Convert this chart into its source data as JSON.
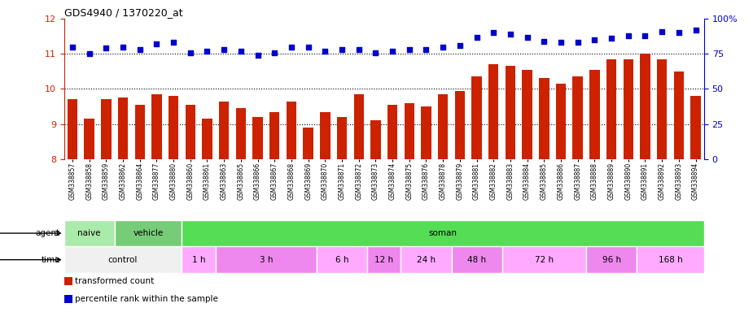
{
  "title": "GDS4940 / 1370220_at",
  "samples": [
    "GSM338857",
    "GSM338858",
    "GSM338859",
    "GSM338862",
    "GSM338864",
    "GSM338877",
    "GSM338880",
    "GSM338860",
    "GSM338861",
    "GSM338863",
    "GSM338865",
    "GSM338866",
    "GSM338867",
    "GSM338868",
    "GSM338869",
    "GSM338870",
    "GSM338871",
    "GSM338872",
    "GSM338873",
    "GSM338874",
    "GSM338875",
    "GSM338876",
    "GSM338878",
    "GSM338879",
    "GSM338881",
    "GSM338882",
    "GSM338883",
    "GSM338884",
    "GSM338885",
    "GSM338886",
    "GSM338887",
    "GSM338888",
    "GSM338889",
    "GSM338890",
    "GSM338891",
    "GSM338892",
    "GSM338893",
    "GSM338894"
  ],
  "bar_values": [
    9.7,
    9.15,
    9.7,
    9.75,
    9.55,
    9.85,
    9.8,
    9.55,
    9.15,
    9.65,
    9.45,
    9.2,
    9.35,
    9.65,
    8.9,
    9.35,
    9.2,
    9.85,
    9.1,
    9.55,
    9.6,
    9.5,
    9.85,
    9.95,
    10.35,
    10.7,
    10.65,
    10.55,
    10.3,
    10.15,
    10.35,
    10.55,
    10.85,
    10.85,
    11.0,
    10.85,
    10.5,
    9.8
  ],
  "percentile_right": [
    80,
    75,
    79,
    80,
    78,
    82,
    83,
    76,
    77,
    78,
    77,
    74,
    76,
    80,
    80,
    77,
    78,
    78,
    76,
    77,
    78,
    78,
    80,
    81,
    87,
    90,
    89,
    87,
    84,
    83,
    83,
    85,
    86,
    88,
    88,
    91,
    90,
    92
  ],
  "bar_color": "#cc2200",
  "dot_color": "#0000cc",
  "ylim_left": [
    8,
    12
  ],
  "ylim_right": [
    0,
    100
  ],
  "yticks_left": [
    8,
    9,
    10,
    11,
    12
  ],
  "yticks_right": [
    0,
    25,
    50,
    75,
    100
  ],
  "ytick_right_labels": [
    "0",
    "25",
    "50",
    "75",
    "100%"
  ],
  "grid_lines": [
    9,
    10,
    11
  ],
  "agent_groups": [
    {
      "label": "naive",
      "start": 0,
      "end": 3,
      "color": "#aaeaaa"
    },
    {
      "label": "vehicle",
      "start": 3,
      "end": 7,
      "color": "#77cc77"
    },
    {
      "label": "soman",
      "start": 7,
      "end": 38,
      "color": "#55dd55"
    }
  ],
  "time_groups": [
    {
      "label": "control",
      "start": 0,
      "end": 7,
      "color": "#f0f0f0"
    },
    {
      "label": "1 h",
      "start": 7,
      "end": 9,
      "color": "#ffaaff"
    },
    {
      "label": "3 h",
      "start": 9,
      "end": 15,
      "color": "#ee88ee"
    },
    {
      "label": "6 h",
      "start": 15,
      "end": 18,
      "color": "#ffaaff"
    },
    {
      "label": "12 h",
      "start": 18,
      "end": 20,
      "color": "#ee88ee"
    },
    {
      "label": "24 h",
      "start": 20,
      "end": 23,
      "color": "#ffaaff"
    },
    {
      "label": "48 h",
      "start": 23,
      "end": 26,
      "color": "#ee88ee"
    },
    {
      "label": "72 h",
      "start": 26,
      "end": 31,
      "color": "#ffaaff"
    },
    {
      "label": "96 h",
      "start": 31,
      "end": 34,
      "color": "#ee88ee"
    },
    {
      "label": "168 h",
      "start": 34,
      "end": 38,
      "color": "#ffaaff"
    }
  ],
  "legend_items": [
    {
      "label": "transformed count",
      "color": "#cc2200"
    },
    {
      "label": "percentile rank within the sample",
      "color": "#0000cc"
    }
  ],
  "tick_fontsize": 5.5,
  "title_fontsize": 9,
  "label_fontsize": 7.5,
  "axis_label_fontsize": 8
}
